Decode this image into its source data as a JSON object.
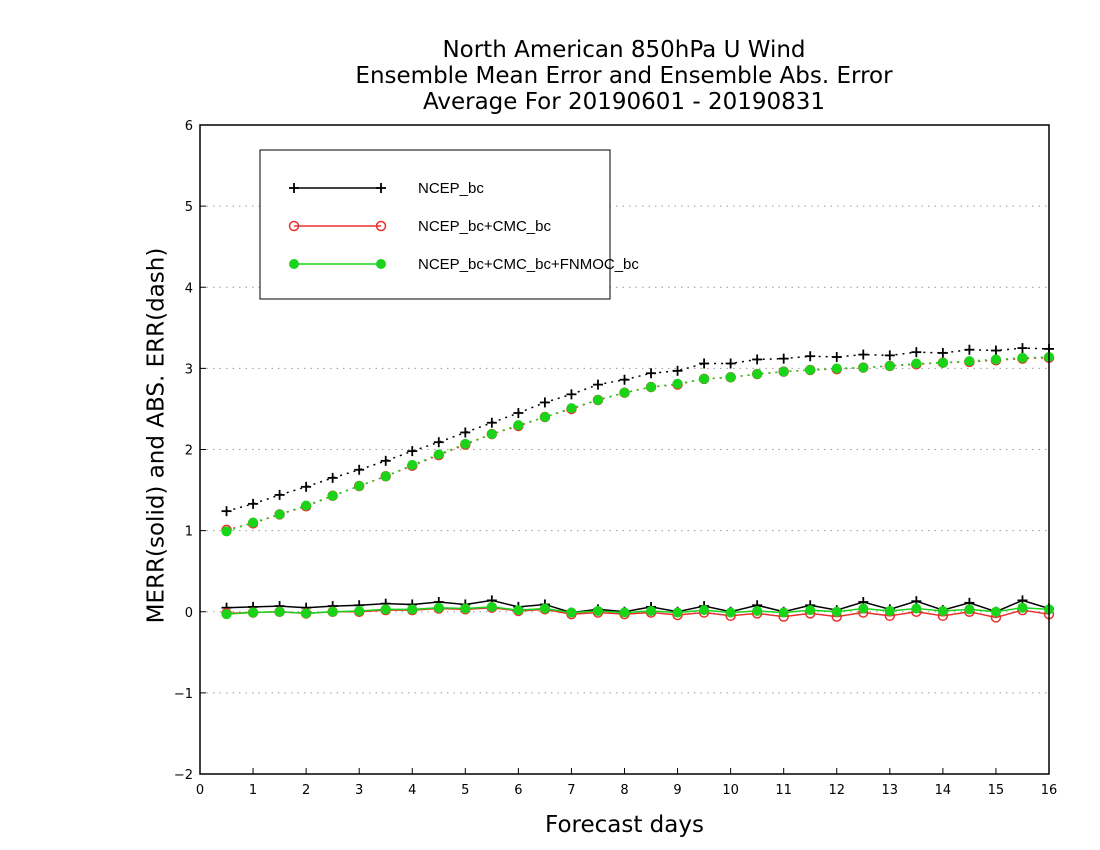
{
  "chart_data": {
    "type": "line",
    "title": [
      "North American 850hPa U Wind",
      "Ensemble Mean Error and Ensemble Abs. Error",
      "Average For 20190601 - 20190831"
    ],
    "xlabel": "Forecast days",
    "ylabel": "MERR(solid) and ABS. ERR(dash)",
    "xlim": [
      0,
      16
    ],
    "ylim": [
      -2,
      6
    ],
    "xticks": [
      0,
      1,
      2,
      3,
      4,
      5,
      6,
      7,
      8,
      9,
      10,
      11,
      12,
      13,
      14,
      15,
      16
    ],
    "yticks": [
      -2,
      -1,
      0,
      1,
      2,
      3,
      4,
      5,
      6
    ],
    "ytick_labels": [
      "−2",
      "−1",
      "0",
      "1",
      "2",
      "3",
      "4",
      "5",
      "6"
    ],
    "grid": "horizontal-dotted",
    "legend_position": "top-left",
    "x": [
      0.5,
      1,
      1.5,
      2,
      2.5,
      3,
      3.5,
      4,
      4.5,
      5,
      5.5,
      6,
      6.5,
      7,
      7.5,
      8,
      8.5,
      9,
      9.5,
      10,
      10.5,
      11,
      11.5,
      12,
      12.5,
      13,
      13.5,
      14,
      14.5,
      15,
      15.5,
      16
    ],
    "series": [
      {
        "name": "NCEP_bc",
        "color": "#000000",
        "marker": "plus",
        "abs_err": [
          1.24,
          1.33,
          1.44,
          1.54,
          1.65,
          1.75,
          1.86,
          1.98,
          2.09,
          2.21,
          2.33,
          2.45,
          2.58,
          2.68,
          2.8,
          2.86,
          2.94,
          2.97,
          3.06,
          3.06,
          3.11,
          3.12,
          3.15,
          3.14,
          3.17,
          3.16,
          3.2,
          3.19,
          3.23,
          3.22,
          3.25,
          3.24
        ],
        "mean_err": [
          0.05,
          0.06,
          0.07,
          0.05,
          0.07,
          0.08,
          0.1,
          0.09,
          0.12,
          0.09,
          0.14,
          0.06,
          0.09,
          -0.01,
          0.03,
          0.0,
          0.06,
          0.0,
          0.07,
          0.0,
          0.08,
          0.0,
          0.08,
          0.02,
          0.12,
          0.03,
          0.13,
          0.02,
          0.11,
          0.0,
          0.14,
          0.04
        ]
      },
      {
        "name": "NCEP_bc+CMC_bc",
        "color": "#e83030",
        "marker": "open-circle",
        "abs_err": [
          1.01,
          1.09,
          1.2,
          1.3,
          1.43,
          1.55,
          1.67,
          1.8,
          1.93,
          2.06,
          2.19,
          2.29,
          2.4,
          2.5,
          2.61,
          2.7,
          2.77,
          2.8,
          2.87,
          2.89,
          2.93,
          2.96,
          2.98,
          2.99,
          3.01,
          3.03,
          3.05,
          3.07,
          3.08,
          3.1,
          3.12,
          3.13
        ],
        "mean_err": [
          -0.02,
          -0.01,
          0.0,
          -0.02,
          0.0,
          0.0,
          0.02,
          0.02,
          0.04,
          0.03,
          0.05,
          0.01,
          0.03,
          -0.03,
          -0.01,
          -0.03,
          -0.01,
          -0.04,
          -0.01,
          -0.05,
          -0.02,
          -0.06,
          -0.02,
          -0.06,
          -0.01,
          -0.05,
          0.0,
          -0.05,
          0.0,
          -0.07,
          0.02,
          -0.03
        ]
      },
      {
        "name": "NCEP_bc+CMC_bc+FNMOC_bc",
        "color": "#1ad41a",
        "marker": "filled-circle",
        "abs_err": [
          0.99,
          1.1,
          1.2,
          1.31,
          1.43,
          1.55,
          1.67,
          1.81,
          1.94,
          2.07,
          2.19,
          2.3,
          2.4,
          2.51,
          2.61,
          2.7,
          2.77,
          2.81,
          2.87,
          2.89,
          2.93,
          2.96,
          2.98,
          3.0,
          3.01,
          3.03,
          3.06,
          3.07,
          3.09,
          3.11,
          3.13,
          3.14
        ],
        "mean_err": [
          -0.03,
          -0.01,
          0.0,
          -0.02,
          0.0,
          0.01,
          0.03,
          0.03,
          0.05,
          0.04,
          0.06,
          0.02,
          0.04,
          -0.01,
          0.01,
          -0.01,
          0.01,
          -0.01,
          0.02,
          -0.01,
          0.01,
          -0.01,
          0.02,
          0.0,
          0.04,
          0.01,
          0.04,
          0.01,
          0.03,
          0.0,
          0.05,
          0.03
        ]
      }
    ]
  }
}
